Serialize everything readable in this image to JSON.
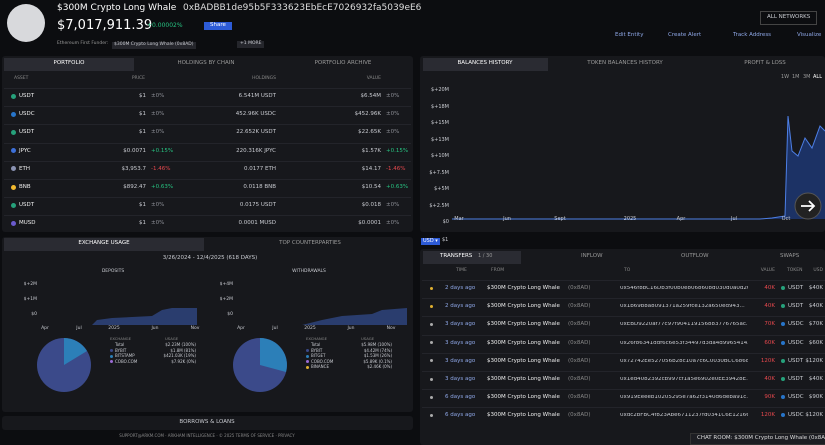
{
  "header": {
    "name": "$300M Crypto Long Whale",
    "address": "0xBADBB1de95b5F333623EbEcE7026932fa5039eE6",
    "balance": "$7,017,911.39",
    "change": "+0.00002%",
    "share": "Share",
    "funder_label": "Ethereum First Funder:",
    "funder": "$300M Crypto Long Whale (0x8AD)",
    "more": "+1 MORE",
    "networks": "ALL NETWORKS",
    "actions": [
      "Edit Entity",
      "Create Alert",
      "Track Address",
      "Visualize"
    ]
  },
  "portfolio": {
    "tabs": [
      "PORTFOLIO",
      "HOLDINGS BY CHAIN",
      "PORTFOLIO ARCHIVE"
    ],
    "columns": [
      "ASSET",
      "PRICE",
      "HOLDINGS",
      "VALUE"
    ],
    "rows": [
      {
        "asset": "USDT",
        "color": "#26a17b",
        "price": "$1",
        "price_change": "±0%",
        "holdings": "6.541M USDT",
        "value": "$6.54M",
        "value_change": "±0%"
      },
      {
        "asset": "USDC",
        "color": "#2775ca",
        "price": "$1",
        "price_change": "±0%",
        "holdings": "452.96K USDC",
        "value": "$452.96K",
        "value_change": "±0%"
      },
      {
        "asset": "USDT",
        "color": "#26a17b",
        "price": "$1",
        "price_change": "±0%",
        "holdings": "22.652K USDT",
        "value": "$22.65K",
        "value_change": "±0%"
      },
      {
        "asset": "JPYC",
        "color": "#3c6fd8",
        "price": "$0.0071",
        "price_change": "+0.15%",
        "holdings": "220.316K JPYC",
        "value": "$1.57K",
        "value_change": "+0.15%"
      },
      {
        "asset": "ETH",
        "color": "#8a92b2",
        "price": "$3,953.7",
        "price_change": "-1.46%",
        "holdings": "0.0177 ETH",
        "value": "$14.17",
        "value_change": "-1.46%"
      },
      {
        "asset": "BNB",
        "color": "#f3ba2f",
        "price": "$892.47",
        "price_change": "+0.63%",
        "holdings": "0.0118 BNB",
        "value": "$10.54",
        "value_change": "+0.63%"
      },
      {
        "asset": "USDT",
        "color": "#26a17b",
        "price": "$1",
        "price_change": "±0%",
        "holdings": "0.0175 USDT",
        "value": "$0.018",
        "value_change": "±0%"
      },
      {
        "asset": "MUSD",
        "color": "#6a5acd",
        "price": "$1",
        "price_change": "±0%",
        "holdings": "0.0001 MUSD",
        "value": "$0.0001",
        "value_change": "±0%"
      }
    ]
  },
  "balances": {
    "tabs": [
      "BALANCES HISTORY",
      "TOKEN BALANCES HISTORY",
      "PROFIT & LOSS"
    ],
    "ranges": [
      "1W",
      "1M",
      "3M",
      "ALL"
    ],
    "y_labels": [
      "$+20M",
      "$+18M",
      "$+15M",
      "$+13M",
      "$+10M",
      "$+7.5M",
      "$+5M",
      "$+2.5M",
      "$0"
    ],
    "x_labels": [
      "Mar",
      "Jun",
      "Sept",
      "2025",
      "Apr",
      "Jul",
      "Oct"
    ],
    "currency": "USD ▾",
    "unit": "$1"
  },
  "exchange": {
    "tabs": [
      "EXCHANGE USAGE",
      "TOP COUNTERPARTIES"
    ],
    "range": "3/26/2024 - 12/4/2025 (618 DAYS)",
    "panels": [
      {
        "title": "DEPOSITS",
        "y_labels": [
          "$+2M",
          "$+1M",
          "$0"
        ],
        "x_labels": [
          "Apr",
          "Jul",
          "2025",
          "Jun",
          "Nov"
        ],
        "head": [
          "EXCHANGE",
          "USAGE"
        ],
        "entries": [
          {
            "name": "Total",
            "value": "$2.23M (100%)",
            "color": "#cccccc"
          },
          {
            "name": "BYBIT",
            "value": "$1.8M (81%)",
            "color": "#3b4a8a"
          },
          {
            "name": "BITSTAMP",
            "value": "$421.03K (19%)",
            "color": "#2c7fb8"
          },
          {
            "name": "COBO.COM",
            "value": "$7.92K (0%)",
            "color": "#9b6bd6"
          }
        ]
      },
      {
        "title": "WITHDRAWALS",
        "y_labels": [
          "$+4M",
          "$+2M",
          "$0"
        ],
        "x_labels": [
          "Apr",
          "Jul",
          "2025",
          "Jun",
          "Nov"
        ],
        "head": [
          "EXCHANGE",
          "USAGE"
        ],
        "entries": [
          {
            "name": "Total",
            "value": "$5.98M (100%)",
            "color": "#cccccc"
          },
          {
            "name": "BYBIT",
            "value": "$4.42M (74%)",
            "color": "#3b4a8a"
          },
          {
            "name": "BITGET",
            "value": "$1.53M (26%)",
            "color": "#2c7fb8"
          },
          {
            "name": "COBO.COM",
            "value": "$5.89K (0.1%)",
            "color": "#9b6bd6"
          },
          {
            "name": "BINANCE",
            "value": "$2.46K (0%)",
            "color": "#e0b030"
          }
        ]
      }
    ]
  },
  "borrows": "BORROWS & LOANS",
  "footer": "SUPPORT@ARKM.COM · ARKHAM INTELLIGENCE · © 2025 TERMS OF SERVICE · PRIVACY",
  "transfers": {
    "tabs": [
      "TRANSFERS",
      "1 / 30",
      "INFLOW",
      "OUTFLOW",
      "SWAPS"
    ],
    "columns": [
      "TIME",
      "FROM",
      "TO",
      "VALUE",
      "TOKEN",
      "USD"
    ],
    "rows": [
      {
        "time": "2 days ago",
        "from": "$300M Crypto Long Whale",
        "from_tag": "(0x8AD)",
        "to": "0x546f8bC16Db3f00b0e8068608d030d0a0d20...",
        "value": "40K",
        "token": "USDT",
        "usd": "$40K"
      },
      {
        "time": "2 days ago",
        "from": "$300M Crypto Long Whale",
        "from_tag": "(0x8AD)",
        "to": "0x1b69b8a8091371a259fce132a650ed943...",
        "value": "40K",
        "token": "USDT",
        "usd": "$40K"
      },
      {
        "time": "3 days ago",
        "from": "$300M Crypto Long Whale",
        "from_tag": "(0x8AD)",
        "to": "0xEBD9220af77c97f904119156883776765ac...",
        "value": "70K",
        "token": "USDC",
        "usd": "$70K"
      },
      {
        "time": "3 days ago",
        "from": "$300M Crypto Long Whale",
        "from_tag": "(0x8AD)",
        "to": "0x26f86341ddf6c6e53f34497d3da4d99654143...",
        "value": "60K",
        "token": "USDC",
        "usd": "$60K"
      },
      {
        "time": "3 days ago",
        "from": "$300M Crypto Long Whale",
        "from_tag": "(0x8AD)",
        "to": "0x72742Ee527056b28c10a7c6C0030BCC68685...",
        "value": "120K",
        "token": "USDT",
        "usd": "$120K"
      },
      {
        "time": "3 days ago",
        "from": "$300M Crypto Long Whale",
        "from_tag": "(0x8AD)",
        "to": "0x1ed4082392cb997cf1a5e6902e0EE39428E...",
        "value": "40K",
        "token": "USDT",
        "usd": "$40K"
      },
      {
        "time": "6 days ago",
        "from": "$300M Crypto Long Whale",
        "from_tag": "(0x8AD)",
        "to": "0x919Eeeeb10205295e7a62f3140d6deba91c...",
        "value": "90K",
        "token": "USDC",
        "usd": "$90K"
      },
      {
        "time": "6 days ago",
        "from": "$300M Crypto Long Whale",
        "from_tag": "(0x8AD)",
        "to": "0xdc2bFBC4f823Abe6711237fd0341C6E121661...",
        "value": "120K",
        "token": "USDC",
        "usd": "$120K"
      }
    ]
  },
  "chat": "CHAT ROOM: $300M Crypto Long Whale (0x8AD)"
}
